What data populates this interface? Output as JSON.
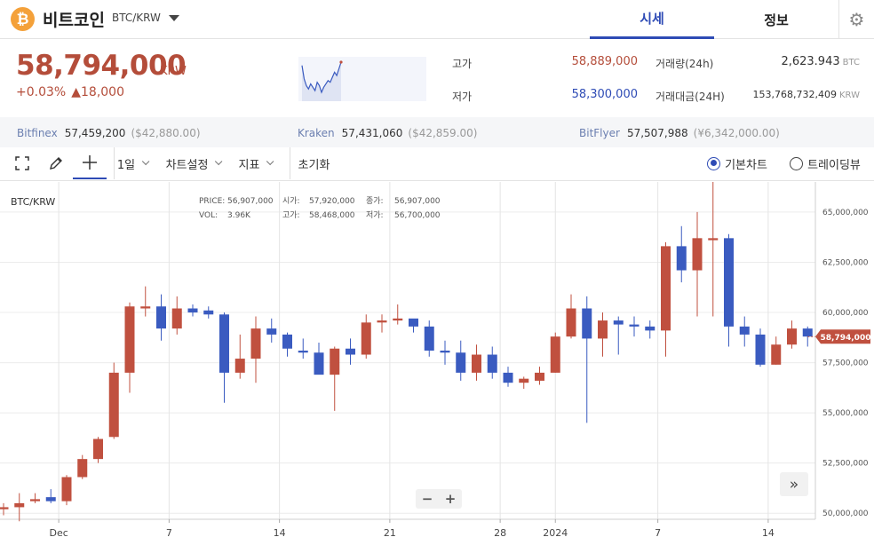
{
  "coin": {
    "logo_glyph": "₿",
    "name": "비트코인",
    "pair": "BTC/KRW"
  },
  "tabs": {
    "price": "시세",
    "info": "정보"
  },
  "price": {
    "value": "58,794,000",
    "unit": "KRW",
    "change_pct": "+0.03%",
    "change_arrow": "▲",
    "change_abs": "18,000"
  },
  "stats": {
    "high_label": "고가",
    "high_value": "58,889,000",
    "low_label": "저가",
    "low_value": "58,300,000",
    "volume_label": "거래량(24h)",
    "volume_value": "2,623.943",
    "volume_unit": "BTC",
    "amount_label": "거래대금(24H)",
    "amount_value": "153,768,732,409",
    "amount_unit": "KRW"
  },
  "exchanges": [
    {
      "name": "Bitfinex",
      "price": "57,459,200",
      "usd": "($42,880.00)"
    },
    {
      "name": "Kraken",
      "price": "57,431,060",
      "usd": "($42,859.00)"
    },
    {
      "name": "BitFlyer",
      "price": "57,507,988",
      "usd": "(¥6,342,000.00)"
    }
  ],
  "toolbar": {
    "fullscreen_icon": "fullscreen-icon",
    "draw_icon": "pencil-icon",
    "crosshair_icon": "crosshair-icon",
    "period": "1일",
    "chart_settings": "차트설정",
    "indicators": "지표",
    "reset": "초기화",
    "basic_chart": "기본차트",
    "trading_view": "트레이딩뷰"
  },
  "chart_info": {
    "pair": "BTC/KRW",
    "price_label": "PRICE:",
    "price_value": "56,907,000",
    "vol_label": "VOL:",
    "vol_value": "3.96K",
    "open_label": "시가:",
    "open_value": "57,920,000",
    "high_label": "고가:",
    "high_value": "58,468,000",
    "close_label": "종가:",
    "close_value": "56,907,000",
    "low_label": "저가:",
    "low_value": "56,700,000"
  },
  "zoom": {
    "minus": "−",
    "plus": "+"
  },
  "scroll_glyph": "»",
  "colors": {
    "up": "#c0503f",
    "down": "#3a5bc0",
    "accent": "#2e4bb5"
  },
  "mini_chart": {
    "values": [
      58.6,
      57.8,
      57.4,
      57.2,
      57.5,
      57.3,
      57.1,
      57.6,
      57.4,
      57.0,
      57.3,
      57.5,
      57.7,
      57.6,
      57.9,
      58.2,
      58.0,
      58.4,
      58.8
    ]
  },
  "chart_data": {
    "type": "candlestick",
    "y_axis": {
      "min": 49700000,
      "max": 66500000,
      "ticks": [
        50000000,
        52500000,
        55000000,
        57500000,
        60000000,
        62500000,
        65000000
      ],
      "tick_labels": [
        "50,000,000",
        "52,500,000",
        "55,000,000",
        "57,500,000",
        "60,000,000",
        "62,500,000",
        "65,000,000"
      ]
    },
    "x_labels": [
      {
        "index": 3.5,
        "text": "Dec"
      },
      {
        "index": 10.5,
        "text": "7"
      },
      {
        "index": 17.5,
        "text": "14"
      },
      {
        "index": 24.5,
        "text": "21"
      },
      {
        "index": 31.5,
        "text": "28"
      },
      {
        "index": 35,
        "text": "2024"
      },
      {
        "index": 41.5,
        "text": "7"
      },
      {
        "index": 48.5,
        "text": "14"
      }
    ],
    "vlines": [
      3.5,
      10.5,
      17.5,
      24.5,
      31.5,
      35,
      41.5,
      48.5
    ],
    "last_price": 58794000,
    "last_price_label": "58,794,000",
    "candles": [
      {
        "o": 50200000,
        "h": 50500000,
        "l": 49900000,
        "c": 50300000
      },
      {
        "o": 50300000,
        "h": 51000000,
        "l": 49600000,
        "c": 50500000
      },
      {
        "o": 50600000,
        "h": 51000000,
        "l": 50500000,
        "c": 50700000
      },
      {
        "o": 50800000,
        "h": 51200000,
        "l": 50500000,
        "c": 50600000
      },
      {
        "o": 50600000,
        "h": 51900000,
        "l": 50400000,
        "c": 51800000
      },
      {
        "o": 51800000,
        "h": 52900000,
        "l": 51700000,
        "c": 52700000
      },
      {
        "o": 52700000,
        "h": 53800000,
        "l": 52500000,
        "c": 53700000
      },
      {
        "o": 53800000,
        "h": 57500000,
        "l": 53700000,
        "c": 57000000
      },
      {
        "o": 57000000,
        "h": 60500000,
        "l": 56000000,
        "c": 60300000
      },
      {
        "o": 60200000,
        "h": 61300000,
        "l": 59800000,
        "c": 60300000
      },
      {
        "o": 60300000,
        "h": 60900000,
        "l": 58600000,
        "c": 59200000
      },
      {
        "o": 59200000,
        "h": 60800000,
        "l": 58900000,
        "c": 60200000
      },
      {
        "o": 60200000,
        "h": 60400000,
        "l": 59800000,
        "c": 60000000
      },
      {
        "o": 60100000,
        "h": 60300000,
        "l": 59700000,
        "c": 59900000
      },
      {
        "o": 59900000,
        "h": 60000000,
        "l": 55500000,
        "c": 57000000
      },
      {
        "o": 57000000,
        "h": 58900000,
        "l": 56700000,
        "c": 57700000
      },
      {
        "o": 57700000,
        "h": 59800000,
        "l": 56500000,
        "c": 59200000
      },
      {
        "o": 59200000,
        "h": 59700000,
        "l": 58500000,
        "c": 58900000
      },
      {
        "o": 58900000,
        "h": 59000000,
        "l": 57800000,
        "c": 58200000
      },
      {
        "o": 58100000,
        "h": 58700000,
        "l": 57700000,
        "c": 58000000
      },
      {
        "o": 58000000,
        "h": 58500000,
        "l": 57000000,
        "c": 56900000
      },
      {
        "o": 56900000,
        "h": 58300000,
        "l": 55100000,
        "c": 58200000
      },
      {
        "o": 58200000,
        "h": 58700000,
        "l": 57400000,
        "c": 57900000
      },
      {
        "o": 57900000,
        "h": 59900000,
        "l": 57700000,
        "c": 59500000
      },
      {
        "o": 59500000,
        "h": 59900000,
        "l": 59000000,
        "c": 59600000
      },
      {
        "o": 59600000,
        "h": 60400000,
        "l": 59400000,
        "c": 59700000
      },
      {
        "o": 59700000,
        "h": 59600000,
        "l": 59000000,
        "c": 59300000
      },
      {
        "o": 59300000,
        "h": 59600000,
        "l": 57800000,
        "c": 58100000
      },
      {
        "o": 58100000,
        "h": 58600000,
        "l": 57400000,
        "c": 58000000
      },
      {
        "o": 58000000,
        "h": 58600000,
        "l": 56600000,
        "c": 57000000
      },
      {
        "o": 57000000,
        "h": 58400000,
        "l": 56600000,
        "c": 57900000
      },
      {
        "o": 57900000,
        "h": 58300000,
        "l": 56700000,
        "c": 57000000
      },
      {
        "o": 57000000,
        "h": 57300000,
        "l": 56300000,
        "c": 56500000
      },
      {
        "o": 56500000,
        "h": 56800000,
        "l": 56200000,
        "c": 56700000
      },
      {
        "o": 56600000,
        "h": 57300000,
        "l": 56400000,
        "c": 57000000
      },
      {
        "o": 57000000,
        "h": 59000000,
        "l": 57000000,
        "c": 58800000
      },
      {
        "o": 58800000,
        "h": 60900000,
        "l": 58700000,
        "c": 60200000
      },
      {
        "o": 60200000,
        "h": 60800000,
        "l": 54500000,
        "c": 58700000
      },
      {
        "o": 58700000,
        "h": 60000000,
        "l": 57800000,
        "c": 59600000
      },
      {
        "o": 59600000,
        "h": 59800000,
        "l": 57900000,
        "c": 59400000
      },
      {
        "o": 59400000,
        "h": 59800000,
        "l": 58800000,
        "c": 59300000
      },
      {
        "o": 59300000,
        "h": 59600000,
        "l": 58700000,
        "c": 59100000
      },
      {
        "o": 59100000,
        "h": 63500000,
        "l": 57800000,
        "c": 63300000
      },
      {
        "o": 63300000,
        "h": 64300000,
        "l": 61500000,
        "c": 62100000
      },
      {
        "o": 62100000,
        "h": 65000000,
        "l": 59800000,
        "c": 63700000
      },
      {
        "o": 63600000,
        "h": 66700000,
        "l": 59800000,
        "c": 63700000
      },
      {
        "o": 63700000,
        "h": 63900000,
        "l": 58300000,
        "c": 59300000
      },
      {
        "o": 59300000,
        "h": 59800000,
        "l": 58300000,
        "c": 58900000
      },
      {
        "o": 58900000,
        "h": 59200000,
        "l": 57300000,
        "c": 57400000
      },
      {
        "o": 57400000,
        "h": 58800000,
        "l": 57400000,
        "c": 58400000
      },
      {
        "o": 58400000,
        "h": 59600000,
        "l": 58200000,
        "c": 59200000
      },
      {
        "o": 59200000,
        "h": 59300000,
        "l": 58300000,
        "c": 58800000
      }
    ]
  }
}
